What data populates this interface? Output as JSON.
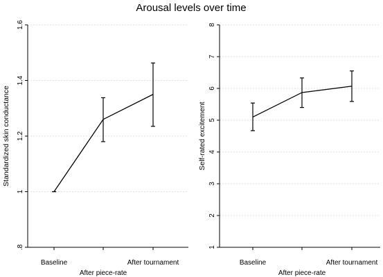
{
  "title": "Arousal levels over time",
  "chart_data": [
    {
      "type": "line",
      "categories": [
        "Baseline",
        "After piece-rate",
        "After tournament"
      ],
      "ylabel": "Standardized skin conductance",
      "ylim": [
        0.8,
        1.6
      ],
      "yticks": [
        0.8,
        1.0,
        1.2,
        1.4,
        1.6
      ],
      "ytick_labels": [
        ".8",
        "1",
        "1.2",
        "1.4",
        "1.6"
      ],
      "grid": true,
      "values": [
        1.0,
        1.26,
        1.35
      ],
      "lower": [
        1.0,
        1.18,
        1.235
      ],
      "upper": [
        1.0,
        1.338,
        1.463
      ]
    },
    {
      "type": "line",
      "categories": [
        "Baseline",
        "After piece-rate",
        "After tournament"
      ],
      "ylabel": "Self-rated excitement",
      "ylim": [
        1,
        8
      ],
      "yticks": [
        1,
        2,
        3,
        4,
        5,
        6,
        7,
        8
      ],
      "ytick_labels": [
        "1",
        "2",
        "3",
        "4",
        "5",
        "6",
        "7",
        "8"
      ],
      "grid": true,
      "values": [
        5.1,
        5.87,
        6.07
      ],
      "lower": [
        4.67,
        5.4,
        5.59
      ],
      "upper": [
        5.54,
        6.33,
        6.55
      ]
    }
  ]
}
